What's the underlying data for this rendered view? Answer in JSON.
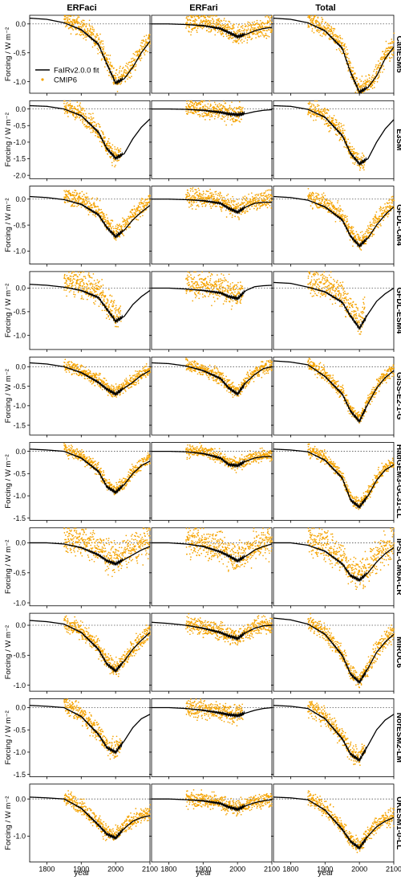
{
  "columns": [
    "ERFaci",
    "ERFari",
    "Total"
  ],
  "xlabel": "year",
  "ylabel": "Forcing / W m⁻²",
  "legend": {
    "fit": "FaIRv2.0.0 fit",
    "cmip": "CMIP6"
  },
  "colors": {
    "fit": "#000000",
    "cmip": "#f5a300",
    "zero_line": "#555555"
  },
  "chart_data": {
    "type": "line",
    "xlim": [
      1750,
      2100
    ],
    "xticks": [
      1800,
      1900,
      2000,
      2100
    ],
    "fit_x": [
      1750,
      1800,
      1850,
      1900,
      1950,
      1975,
      2000,
      2025,
      2050,
      2075,
      2100
    ],
    "cmip_range": [
      1850,
      2100
    ],
    "legend_position": "lower-left of first panel",
    "rows": [
      {
        "model": "CanESM5",
        "ylim": [
          -1.2,
          0.15
        ],
        "yticks": [
          0.0,
          -0.5,
          -1.0
        ],
        "fit": {
          "ERFaci": [
            0.1,
            0.08,
            0.02,
            -0.1,
            -0.35,
            -0.7,
            -1.02,
            -0.95,
            -0.75,
            -0.5,
            -0.3
          ],
          "ERFari": [
            0.0,
            0.0,
            -0.01,
            -0.03,
            -0.08,
            -0.15,
            -0.22,
            -0.18,
            -0.12,
            -0.08,
            -0.06
          ],
          "Total": [
            0.1,
            0.08,
            0.02,
            -0.12,
            -0.42,
            -0.85,
            -1.18,
            -1.1,
            -0.9,
            -0.6,
            -0.4
          ]
        },
        "cmip_bias": 0.05,
        "cmip_spread": 0.12
      },
      {
        "model": "E3SM",
        "ylim": [
          -2.1,
          0.25
        ],
        "yticks": [
          0.0,
          -0.5,
          -1.0,
          -1.5,
          -2.0
        ],
        "fit": {
          "ERFaci": [
            0.1,
            0.08,
            0.0,
            -0.2,
            -0.7,
            -1.2,
            -1.48,
            -1.35,
            -0.9,
            -0.55,
            -0.3
          ],
          "ERFari": [
            0.0,
            0.0,
            -0.01,
            -0.04,
            -0.1,
            -0.15,
            -0.17,
            -0.14,
            -0.08,
            -0.04,
            -0.02
          ],
          "Total": [
            0.1,
            0.08,
            -0.01,
            -0.25,
            -0.8,
            -1.35,
            -1.65,
            -1.5,
            -1.0,
            -0.6,
            -0.32
          ]
        },
        "cmip_bias": 0.05,
        "cmip_spread": 0.2,
        "cmip_end": 2015
      },
      {
        "model": "GFDL-CM4",
        "ylim": [
          -1.25,
          0.25
        ],
        "yticks": [
          0.0,
          -0.5,
          -1.0
        ],
        "fit": {
          "ERFaci": [
            0.05,
            0.03,
            -0.01,
            -0.1,
            -0.3,
            -0.55,
            -0.72,
            -0.6,
            -0.4,
            -0.25,
            -0.12
          ],
          "ERFari": [
            0.0,
            0.0,
            -0.01,
            -0.03,
            -0.08,
            -0.18,
            -0.25,
            -0.15,
            -0.08,
            -0.06,
            -0.06
          ],
          "Total": [
            0.05,
            0.03,
            -0.02,
            -0.15,
            -0.4,
            -0.72,
            -0.9,
            -0.75,
            -0.5,
            -0.3,
            -0.15
          ]
        },
        "cmip_bias": 0.08,
        "cmip_spread": 0.12
      },
      {
        "model": "GFDL-ESM4",
        "ylim": [
          -1.3,
          0.35
        ],
        "yticks": [
          0.0,
          -0.5,
          -1.0
        ],
        "fit": {
          "ERFaci": [
            0.08,
            0.06,
            0.02,
            -0.05,
            -0.2,
            -0.45,
            -0.7,
            -0.6,
            -0.35,
            -0.18,
            -0.05
          ],
          "ERFari": [
            0.0,
            0.0,
            -0.02,
            -0.05,
            -0.1,
            -0.18,
            -0.22,
            -0.05,
            0.03,
            0.05,
            0.06
          ],
          "Total": [
            0.12,
            0.1,
            0.02,
            -0.08,
            -0.3,
            -0.6,
            -0.85,
            -0.55,
            -0.28,
            -0.12,
            0.0
          ]
        },
        "cmip_bias": 0.15,
        "cmip_spread": 0.2,
        "cmip_end": 2015
      },
      {
        "model": "GISS-E2-1-G",
        "ylim": [
          -1.75,
          0.25
        ],
        "yticks": [
          0.0,
          -0.5,
          -1.0,
          -1.5
        ],
        "fit": {
          "ERFaci": [
            0.1,
            0.07,
            0.0,
            -0.15,
            -0.4,
            -0.58,
            -0.7,
            -0.55,
            -0.4,
            -0.22,
            -0.1
          ],
          "ERFari": [
            0.1,
            0.08,
            0.02,
            -0.1,
            -0.3,
            -0.55,
            -0.7,
            -0.4,
            -0.2,
            -0.05,
            0.0
          ],
          "Total": [
            0.15,
            0.12,
            0.05,
            -0.25,
            -0.7,
            -1.15,
            -1.4,
            -0.95,
            -0.55,
            -0.28,
            -0.1
          ]
        },
        "cmip_bias": 0.05,
        "cmip_spread": 0.12
      },
      {
        "model": "HadGEM3-GC31-LL",
        "ylim": [
          -1.55,
          0.2
        ],
        "yticks": [
          0.0,
          -0.5,
          -1.0,
          -1.5
        ],
        "fit": {
          "ERFaci": [
            0.05,
            0.03,
            0.0,
            -0.15,
            -0.45,
            -0.8,
            -0.92,
            -0.75,
            -0.5,
            -0.32,
            -0.22
          ],
          "ERFari": [
            0.0,
            0.0,
            -0.01,
            -0.05,
            -0.15,
            -0.3,
            -0.32,
            -0.22,
            -0.15,
            -0.12,
            -0.12
          ],
          "Total": [
            0.05,
            0.03,
            -0.01,
            -0.2,
            -0.6,
            -1.1,
            -1.25,
            -1.0,
            -0.65,
            -0.42,
            -0.3
          ]
        },
        "cmip_bias": 0.05,
        "cmip_spread": 0.1
      },
      {
        "model": "IPSL-CM6A-LR",
        "ylim": [
          -1.05,
          0.25
        ],
        "yticks": [
          0.0,
          -0.5,
          -1.0
        ],
        "fit": {
          "ERFaci": [
            0.0,
            0.0,
            -0.02,
            -0.08,
            -0.2,
            -0.3,
            -0.35,
            -0.28,
            -0.2,
            -0.12,
            -0.06
          ],
          "ERFari": [
            0.0,
            0.0,
            -0.02,
            -0.06,
            -0.15,
            -0.22,
            -0.3,
            -0.22,
            -0.12,
            -0.06,
            -0.02
          ],
          "Total": [
            0.0,
            0.0,
            -0.04,
            -0.14,
            -0.35,
            -0.55,
            -0.62,
            -0.5,
            -0.32,
            -0.18,
            -0.08
          ]
        },
        "cmip_bias": 0.1,
        "cmip_spread": 0.18
      },
      {
        "model": "MIROC6",
        "ylim": [
          -1.1,
          0.2
        ],
        "yticks": [
          0.0,
          -0.5,
          -1.0
        ],
        "fit": {
          "ERFaci": [
            0.08,
            0.06,
            0.02,
            -0.12,
            -0.4,
            -0.65,
            -0.76,
            -0.6,
            -0.4,
            -0.25,
            -0.12
          ],
          "ERFari": [
            0.05,
            0.03,
            0.0,
            -0.05,
            -0.12,
            -0.18,
            -0.22,
            -0.12,
            -0.05,
            -0.01,
            0.0
          ],
          "Total": [
            0.12,
            0.09,
            0.02,
            -0.15,
            -0.5,
            -0.82,
            -0.95,
            -0.72,
            -0.45,
            -0.28,
            -0.15
          ]
        },
        "cmip_bias": 0.03,
        "cmip_spread": 0.1
      },
      {
        "model": "NorESM2-LM",
        "ylim": [
          -1.55,
          0.2
        ],
        "yticks": [
          0.0,
          -0.5,
          -1.0,
          -1.5
        ],
        "fit": {
          "ERFaci": [
            0.05,
            0.03,
            0.0,
            -0.2,
            -0.6,
            -0.9,
            -1.0,
            -0.75,
            -0.45,
            -0.25,
            -0.15
          ],
          "ERFari": [
            0.0,
            0.0,
            -0.02,
            -0.06,
            -0.12,
            -0.16,
            -0.18,
            -0.12,
            -0.06,
            -0.02,
            0.0
          ],
          "Total": [
            0.05,
            0.03,
            -0.02,
            -0.25,
            -0.7,
            -1.05,
            -1.18,
            -0.85,
            -0.5,
            -0.28,
            -0.15
          ]
        },
        "cmip_bias": 0.05,
        "cmip_spread": 0.15,
        "cmip_end": 2015
      },
      {
        "model": "UKESM1-0-LL",
        "ylim": [
          -1.7,
          0.4
        ],
        "yticks": [
          0.0,
          -1.0
        ],
        "fit": {
          "ERFaci": [
            0.05,
            0.03,
            0.0,
            -0.25,
            -0.7,
            -0.95,
            -1.05,
            -0.8,
            -0.6,
            -0.5,
            -0.45
          ],
          "ERFari": [
            0.0,
            0.0,
            -0.02,
            -0.05,
            -0.12,
            -0.22,
            -0.28,
            -0.18,
            -0.1,
            -0.05,
            -0.02
          ],
          "Total": [
            0.05,
            0.03,
            -0.02,
            -0.3,
            -0.82,
            -1.15,
            -1.32,
            -1.0,
            -0.75,
            -0.6,
            -0.5
          ]
        },
        "cmip_bias": 0.05,
        "cmip_spread": 0.15
      }
    ]
  }
}
